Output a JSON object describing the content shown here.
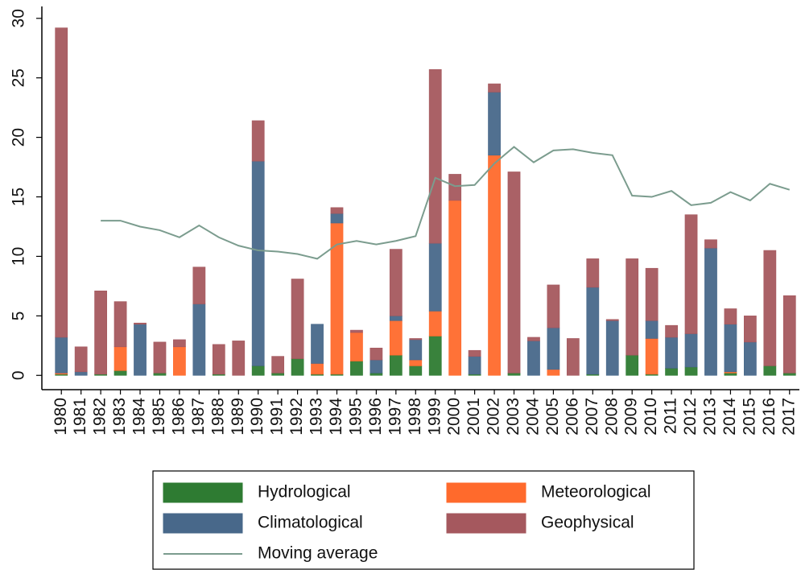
{
  "chart_data": {
    "type": "bar",
    "stacked": true,
    "categories": [
      "1980",
      "1981",
      "1982",
      "1983",
      "1984",
      "1985",
      "1986",
      "1987",
      "1988",
      "1989",
      "1990",
      "1991",
      "1992",
      "1993",
      "1994",
      "1995",
      "1996",
      "1997",
      "1998",
      "1999",
      "2000",
      "2001",
      "2002",
      "2003",
      "2004",
      "2005",
      "2006",
      "2007",
      "2008",
      "2009",
      "2010",
      "2011",
      "2012",
      "2013",
      "2014",
      "2015",
      "2016",
      "2017"
    ],
    "series": [
      {
        "name": "Hydrological",
        "type": "bar",
        "color": "#2e7b32",
        "values": [
          0.1,
          0,
          0.1,
          0.4,
          0,
          0.2,
          0,
          0,
          0.1,
          0,
          0.8,
          0.2,
          1.4,
          0.1,
          0.1,
          1.2,
          0.2,
          1.7,
          0.8,
          3.3,
          0,
          0.1,
          0,
          0.2,
          0,
          0,
          0,
          0.1,
          0,
          1.7,
          0.1,
          0.6,
          0.7,
          0,
          0.2,
          0,
          0.8,
          0.2
        ]
      },
      {
        "name": "Meteorological",
        "type": "bar",
        "color": "#ff6a2c",
        "values": [
          0.1,
          0,
          0,
          2.0,
          0,
          0,
          2.4,
          0,
          0,
          0,
          0,
          0,
          0,
          0.9,
          12.7,
          2.4,
          0,
          2.9,
          0.5,
          2.1,
          14.7,
          0,
          18.5,
          0,
          0,
          0.5,
          0,
          0,
          0,
          0,
          3.0,
          0,
          0,
          0,
          0.1,
          0,
          0,
          0
        ]
      },
      {
        "name": "Climatological",
        "type": "bar",
        "color": "#48688a",
        "values": [
          3.0,
          0.3,
          0,
          0,
          4.3,
          0,
          0,
          6.0,
          0,
          0,
          17.2,
          0,
          0,
          3.3,
          0.8,
          0,
          1.1,
          0.4,
          1.7,
          5.7,
          0,
          1.5,
          5.3,
          0,
          2.9,
          3.5,
          0,
          7.3,
          4.6,
          0,
          1.5,
          2.6,
          2.8,
          10.7,
          4.0,
          2.8,
          0,
          0
        ]
      },
      {
        "name": "Geophysical",
        "type": "bar",
        "color": "#a5585e",
        "values": [
          26.0,
          2.1,
          7.0,
          3.8,
          0.1,
          2.6,
          0.6,
          3.1,
          2.5,
          2.9,
          3.4,
          1.4,
          6.7,
          0,
          0.5,
          0.2,
          1.0,
          5.6,
          0.1,
          14.6,
          2.2,
          0.5,
          0.7,
          16.9,
          0.3,
          3.6,
          3.1,
          2.4,
          0.1,
          8.1,
          4.4,
          1.0,
          10.0,
          0.7,
          1.3,
          2.2,
          9.7,
          6.5
        ]
      },
      {
        "name": "Moving average",
        "type": "line",
        "color": "#7b9c8e",
        "values": [
          null,
          null,
          13.0,
          13.0,
          12.5,
          12.2,
          11.6,
          12.6,
          11.6,
          10.9,
          10.5,
          10.4,
          10.2,
          9.8,
          11.0,
          11.3,
          11.0,
          11.3,
          11.7,
          16.6,
          15.9,
          16.0,
          17.8,
          19.2,
          17.9,
          18.9,
          19.0,
          18.7,
          18.5,
          15.1,
          15.0,
          15.5,
          14.3,
          14.5,
          15.4,
          14.7,
          16.1,
          15.6
        ]
      }
    ],
    "ylim": [
      -1.2,
      31
    ],
    "yticks": [
      0,
      5,
      10,
      15,
      20,
      25,
      30
    ],
    "grid": false
  }
}
